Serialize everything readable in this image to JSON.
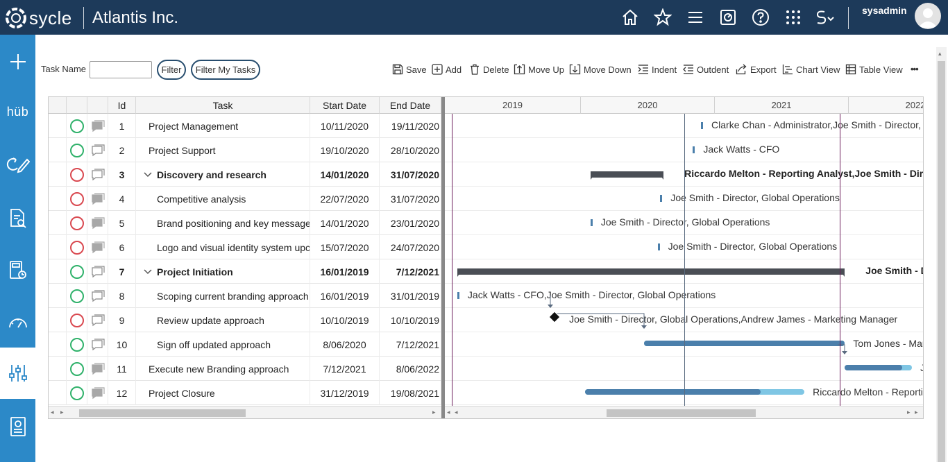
{
  "header": {
    "logo_text": "sycle",
    "company": "Atlantis Inc.",
    "username": "sysadmin",
    "icons": [
      "home-icon",
      "star-icon",
      "menu-icon",
      "dashboard-icon",
      "help-icon",
      "apps-grid-icon",
      "script-icon"
    ]
  },
  "sidebar": {
    "items": [
      {
        "icon": "plus-icon"
      },
      {
        "label": "hüb",
        "icon": "hub-icon"
      },
      {
        "icon": "edit-cycle-icon"
      },
      {
        "icon": "search-document-icon"
      },
      {
        "icon": "calculator-icon"
      },
      {
        "icon": "gauge-icon"
      },
      {
        "icon": "sliders-icon",
        "active": true
      },
      {
        "icon": "report-icon"
      }
    ]
  },
  "filters": {
    "task_name_label": "Task Name",
    "task_name_value": "",
    "filter_label": "Filter",
    "filter_my_tasks_label": "Filter My Tasks"
  },
  "toolbar": {
    "save": "Save",
    "add": "Add",
    "delete": "Delete",
    "move_up": "Move Up",
    "move_down": "Move Down",
    "indent": "Indent",
    "outdent": "Outdent",
    "export": "Export",
    "chart_view": "Chart View",
    "table_view": "Table View",
    "more": "•••"
  },
  "table": {
    "columns": {
      "id": "Id",
      "task": "Task",
      "start": "Start Date",
      "end": "End Date"
    },
    "rows": [
      {
        "id": "1",
        "task": "Project Management",
        "start": "10/11/2020",
        "end": "19/11/2020",
        "status": "green",
        "level": 0,
        "bold": false,
        "chat": "filled"
      },
      {
        "id": "2",
        "task": "Project Support",
        "start": "19/10/2020",
        "end": "28/10/2020",
        "status": "green",
        "level": 0,
        "bold": false,
        "chat": "outline"
      },
      {
        "id": "3",
        "task": "Discovery and research",
        "start": "14/01/2020",
        "end": "31/07/2020",
        "status": "red",
        "level": 0,
        "bold": true,
        "chat": "outline",
        "expander": true
      },
      {
        "id": "4",
        "task": "Competitive analysis",
        "start": "22/07/2020",
        "end": "31/07/2020",
        "status": "red",
        "level": 1,
        "bold": false,
        "chat": "filled"
      },
      {
        "id": "5",
        "task": "Brand positioning and key message",
        "start": "14/01/2020",
        "end": "23/01/2020",
        "status": "red",
        "level": 1,
        "bold": false,
        "chat": "filled"
      },
      {
        "id": "6",
        "task": "Logo and visual identity system upc",
        "start": "15/07/2020",
        "end": "24/07/2020",
        "status": "red",
        "level": 1,
        "bold": false,
        "chat": "filled"
      },
      {
        "id": "7",
        "task": "Project Initiation",
        "start": "16/01/2019",
        "end": "7/12/2021",
        "status": "green",
        "level": 0,
        "bold": true,
        "chat": "outline",
        "expander": true
      },
      {
        "id": "8",
        "task": "Scoping current branding approach",
        "start": "16/01/2019",
        "end": "31/01/2019",
        "status": "green",
        "level": 1,
        "bold": false,
        "chat": "outline"
      },
      {
        "id": "9",
        "task": "Review update approach",
        "start": "10/10/2019",
        "end": "10/10/2019",
        "status": "red",
        "level": 1,
        "bold": false,
        "chat": "outline"
      },
      {
        "id": "10",
        "task": "Sign off updated approach",
        "start": "8/06/2020",
        "end": "7/12/2021",
        "status": "green",
        "level": 1,
        "bold": false,
        "chat": "outline"
      },
      {
        "id": "11",
        "task": "Execute new Branding approach",
        "start": "7/12/2021",
        "end": "8/06/2022",
        "status": "green",
        "level": 0,
        "bold": false,
        "chat": "filled"
      },
      {
        "id": "12",
        "task": "Project Closure",
        "start": "31/12/2019",
        "end": "19/08/2021",
        "status": "green",
        "level": 0,
        "bold": false,
        "chat": "filled"
      }
    ]
  },
  "gantt": {
    "years": [
      "2019",
      "2020",
      "2021",
      "2022"
    ],
    "labels": [
      "Clarke Chan - Administrator,Joe Smith - Director, Gl",
      "Jack Watts - CFO",
      "Riccardo Melton - Reporting Analyst,Joe Smith - Directo",
      "Joe Smith - Director, Global Operations",
      "Joe Smith - Director, Global Operations",
      "Joe Smith - Director, Global Operations",
      "Joe Smith - D",
      "Jack Watts - CFO,Joe Smith - Director, Global Operations",
      "Joe Smith - Director, Global Operations,Andrew James - Marketing Manager",
      "Tom Jones - Mark",
      "Jo",
      "Riccardo Melton - Reporting"
    ]
  },
  "colors": {
    "topbar": "#1d3a5a",
    "sidebar": "#2c89c8",
    "bar": "#4b7fab",
    "progress_light": "#7fc6e4",
    "summary": "#4a4e55",
    "status_ok": "#2fb16a",
    "status_late": "#d9484f"
  }
}
